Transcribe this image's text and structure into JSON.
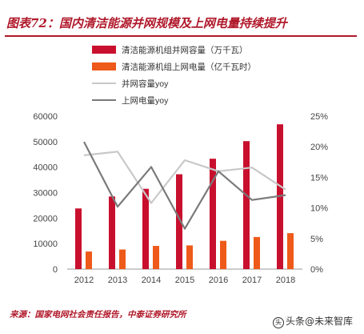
{
  "header": {
    "title": "图表72：国内清洁能源并网规模及上网电量持续提升"
  },
  "footer": {
    "source": "来源：国家电网社会责任报告，中泰证券研究所",
    "watermark": "头条@未来智库"
  },
  "colors": {
    "accent": "#b0182a",
    "bar1": "#c8102e",
    "bar2": "#ee5a1a",
    "line1": "#c8c8c8",
    "line2": "#7a7a7a"
  },
  "chart_data": {
    "type": "bar",
    "categories": [
      "2012",
      "2013",
      "2014",
      "2015",
      "2016",
      "2017",
      "2018"
    ],
    "series": [
      {
        "name": "清洁能源机组并网容量（万千瓦）",
        "kind": "bar",
        "axis": "left",
        "values": [
          23800,
          28500,
          31500,
          37200,
          43300,
          50200,
          56800
        ]
      },
      {
        "name": "清洁能源机组上网电量（亿千瓦时）",
        "kind": "bar",
        "axis": "left",
        "values": [
          6900,
          7700,
          9100,
          9300,
          11100,
          12600,
          14100
        ]
      },
      {
        "name": "并网容量yoy",
        "kind": "line",
        "axis": "right",
        "values": [
          0.186,
          0.192,
          0.108,
          0.178,
          0.16,
          0.166,
          0.13
        ]
      },
      {
        "name": "上网电量yoy",
        "kind": "line",
        "axis": "right",
        "values": [
          0.208,
          0.102,
          0.167,
          0.066,
          0.16,
          0.113,
          0.121
        ]
      }
    ],
    "ylim": [
      0,
      60000
    ],
    "yticks": [
      "0",
      "10000",
      "20000",
      "30000",
      "40000",
      "50000",
      "60000"
    ],
    "y2lim": [
      0,
      0.25
    ],
    "y2ticks": [
      "0%",
      "5%",
      "10%",
      "15%",
      "20%",
      "25%"
    ],
    "legend_position": "top",
    "grid": false
  }
}
